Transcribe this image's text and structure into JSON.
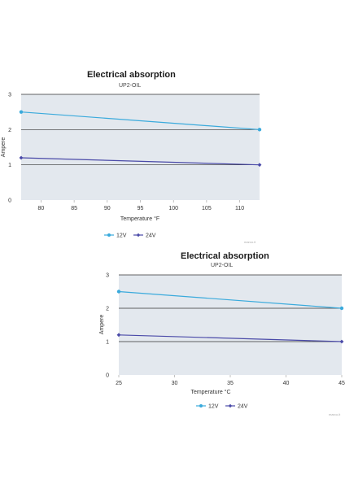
{
  "chart_data": [
    {
      "type": "line",
      "title": "Electrical absorption",
      "subtitle": "UP2-OIL",
      "xlabel": "Temperature °F",
      "ylabel": "Ampere",
      "x_ticks": [
        80,
        85,
        90,
        95,
        100,
        105,
        110
      ],
      "xlim": [
        77,
        113
      ],
      "y_ticks": [
        0,
        1,
        2,
        3
      ],
      "ylim": [
        0,
        3
      ],
      "grid": "horizontal",
      "legend": "bottom",
      "credit": "marco.it",
      "series": [
        {
          "name": "12V",
          "color": "#3aaadc",
          "marker": "circle",
          "x": [
            77,
            113
          ],
          "y": [
            2.5,
            2.0
          ]
        },
        {
          "name": "24V",
          "color": "#4a4aa8",
          "marker": "diamond",
          "x": [
            77,
            113
          ],
          "y": [
            1.2,
            1.0
          ]
        }
      ]
    },
    {
      "type": "line",
      "title": "Electrical absorption",
      "subtitle": "UP2-OIL",
      "xlabel": "Temperature °C",
      "ylabel": "Ampere",
      "x_ticks": [
        25,
        30,
        35,
        40,
        45
      ],
      "xlim": [
        25,
        45
      ],
      "y_ticks": [
        0,
        1,
        2,
        3
      ],
      "ylim": [
        0,
        3
      ],
      "grid": "horizontal",
      "legend": "bottom",
      "credit": "marco.it",
      "series": [
        {
          "name": "12V",
          "color": "#3aaadc",
          "marker": "circle",
          "x": [
            25,
            45
          ],
          "y": [
            2.5,
            2.0
          ]
        },
        {
          "name": "24V",
          "color": "#4a4aa8",
          "marker": "diamond",
          "x": [
            25,
            45
          ],
          "y": [
            1.2,
            1.0
          ]
        }
      ]
    }
  ]
}
